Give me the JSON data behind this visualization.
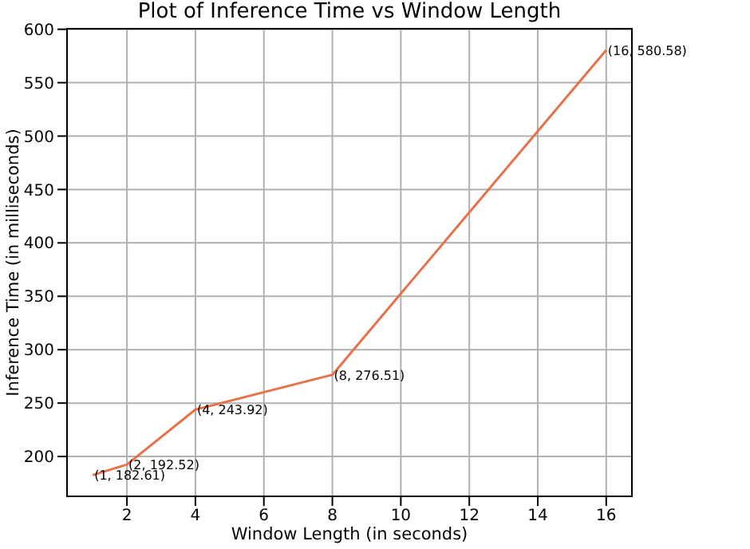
{
  "chart_data": {
    "type": "line",
    "title": "Plot of Inference Time vs Window Length",
    "xlabel": "Window Length (in seconds)",
    "ylabel": "Inference Time (in milliseconds)",
    "x": [
      1,
      2,
      4,
      8,
      16
    ],
    "series": [
      {
        "color": "#e8704a",
        "values": [
          182.61,
          192.52,
          243.92,
          276.51,
          580.58
        ],
        "value_labels": [
          "(1, 182.61)",
          "(2, 192.52)",
          "(4, 243.92)",
          "(8, 276.51)",
          "(16, 580.58)"
        ]
      }
    ],
    "xlim": [
      0.25,
      16.75
    ],
    "ylim": [
      162.7,
      600.5
    ],
    "xticks": [
      2,
      4,
      6,
      8,
      10,
      12,
      14,
      16
    ],
    "yticks": [
      200,
      250,
      300,
      350,
      400,
      450,
      500,
      550,
      600
    ],
    "grid": true,
    "marker": "none",
    "line_style": "solid",
    "legend": false
  }
}
